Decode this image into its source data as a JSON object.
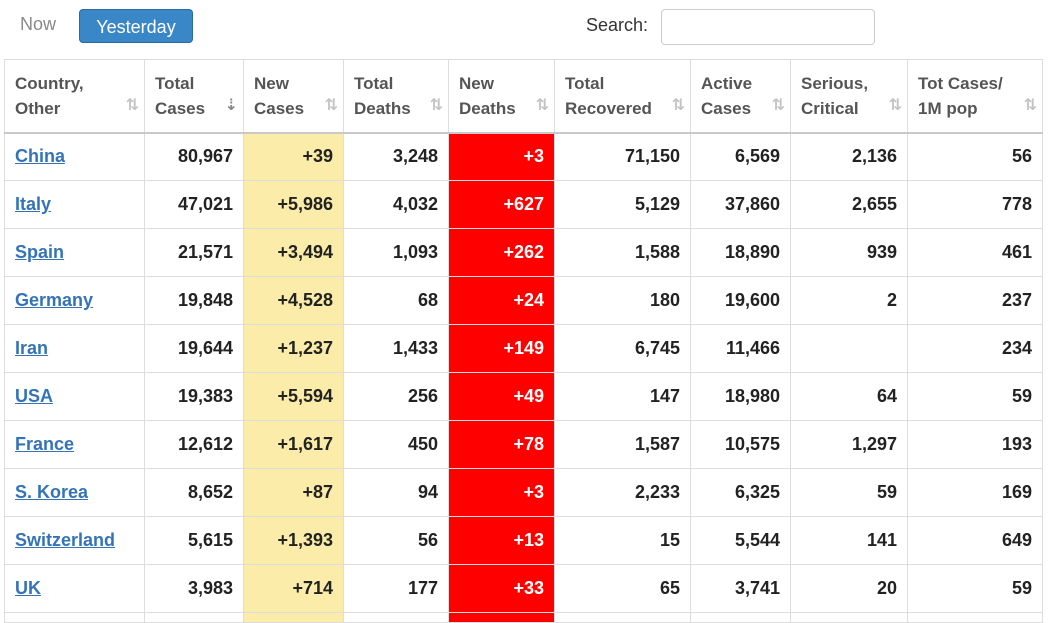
{
  "tabs": {
    "now": "Now",
    "yesterday": "Yesterday"
  },
  "search": {
    "label": "Search:",
    "value": "",
    "placeholder": ""
  },
  "colors": {
    "new_cases_bg": "#fbecaa",
    "new_deaths_bg": "#ff0000",
    "link": "#3473b7",
    "active_tab": "#3a87c8"
  },
  "table": {
    "headers": [
      {
        "line1": "Country,",
        "line2": "Other",
        "sort": "⇅"
      },
      {
        "line1": "Total",
        "line2": "Cases",
        "sort": "⇣"
      },
      {
        "line1": "New",
        "line2": "Cases",
        "sort": "⇅"
      },
      {
        "line1": "Total",
        "line2": "Deaths",
        "sort": "⇅"
      },
      {
        "line1": "New",
        "line2": "Deaths",
        "sort": "⇅"
      },
      {
        "line1": "Total",
        "line2": "Recovered",
        "sort": "⇅"
      },
      {
        "line1": "Active",
        "line2": "Cases",
        "sort": "⇅"
      },
      {
        "line1": "Serious,",
        "line2": "Critical",
        "sort": "⇅"
      },
      {
        "line1": "Tot Cases/",
        "line2": "1M pop",
        "sort": "⇅"
      }
    ],
    "rows": [
      [
        "China",
        "80,967",
        "+39",
        "3,248",
        "+3",
        "71,150",
        "6,569",
        "2,136",
        "56"
      ],
      [
        "Italy",
        "47,021",
        "+5,986",
        "4,032",
        "+627",
        "5,129",
        "37,860",
        "2,655",
        "778"
      ],
      [
        "Spain",
        "21,571",
        "+3,494",
        "1,093",
        "+262",
        "1,588",
        "18,890",
        "939",
        "461"
      ],
      [
        "Germany",
        "19,848",
        "+4,528",
        "68",
        "+24",
        "180",
        "19,600",
        "2",
        "237"
      ],
      [
        "Iran",
        "19,644",
        "+1,237",
        "1,433",
        "+149",
        "6,745",
        "11,466",
        "",
        "234"
      ],
      [
        "USA",
        "19,383",
        "+5,594",
        "256",
        "+49",
        "147",
        "18,980",
        "64",
        "59"
      ],
      [
        "France",
        "12,612",
        "+1,617",
        "450",
        "+78",
        "1,587",
        "10,575",
        "1,297",
        "193"
      ],
      [
        "S. Korea",
        "8,652",
        "+87",
        "94",
        "+3",
        "2,233",
        "6,325",
        "59",
        "169"
      ],
      [
        "Switzerland",
        "5,615",
        "+1,393",
        "56",
        "+13",
        "15",
        "5,544",
        "141",
        "649"
      ],
      [
        "UK",
        "3,983",
        "+714",
        "177",
        "+33",
        "65",
        "3,741",
        "20",
        "59"
      ]
    ]
  }
}
